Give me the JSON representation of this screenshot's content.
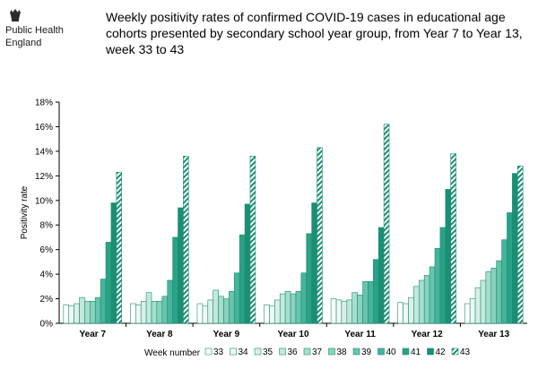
{
  "header": {
    "org_line1": "Public Health",
    "org_line2": "England",
    "title": "Weekly positivity rates of confirmed COVID-19 cases in educational age cohorts presented by secondary school year group, from Year 7 to Year 13, week 33 to 43"
  },
  "chart_data": {
    "type": "bar",
    "title": "Weekly positivity rates of confirmed COVID-19 cases in educational age cohorts presented by secondary school year group, from Year 7 to Year 13, week 33 to 43",
    "xlabel": "",
    "ylabel": "Positivity rate",
    "ylim": [
      0,
      18
    ],
    "y_unit": "%",
    "y_ticks": [
      0,
      2,
      4,
      6,
      8,
      10,
      12,
      14,
      16,
      18
    ],
    "y_tick_labels": [
      "0%",
      "2%",
      "4%",
      "6%",
      "8%",
      "10%",
      "12%",
      "14%",
      "16%",
      "18%"
    ],
    "grid": false,
    "legend": {
      "title": "Week number",
      "placement": "bottom"
    },
    "categories": [
      "Year 7",
      "Year 8",
      "Year 9",
      "Year 10",
      "Year 11",
      "Year 12",
      "Year 13"
    ],
    "series": [
      {
        "name": "33",
        "color": "#ffffff",
        "values": [
          1.5,
          1.6,
          1.6,
          1.5,
          2.0,
          1.7,
          1.6
        ]
      },
      {
        "name": "34",
        "color": "#f0f8f5",
        "values": [
          1.4,
          1.5,
          1.4,
          1.4,
          1.9,
          1.6,
          2.0
        ]
      },
      {
        "name": "35",
        "color": "#daf0e9",
        "values": [
          1.6,
          1.8,
          1.9,
          1.9,
          1.8,
          2.1,
          2.9
        ]
      },
      {
        "name": "36",
        "color": "#c3e8dc",
        "values": [
          2.1,
          2.5,
          2.7,
          2.4,
          1.9,
          3.0,
          3.5
        ]
      },
      {
        "name": "37",
        "color": "#a8dece",
        "values": [
          1.8,
          1.8,
          2.2,
          2.6,
          2.5,
          3.5,
          4.2
        ]
      },
      {
        "name": "38",
        "color": "#8ad2bf",
        "values": [
          1.8,
          1.8,
          2.0,
          2.4,
          2.3,
          3.9,
          4.5
        ]
      },
      {
        "name": "39",
        "color": "#69c4ad",
        "values": [
          2.1,
          2.2,
          2.6,
          2.6,
          3.4,
          4.6,
          5.1
        ]
      },
      {
        "name": "40",
        "color": "#45b49a",
        "values": [
          3.6,
          3.5,
          4.1,
          4.1,
          3.4,
          6.1,
          6.8
        ]
      },
      {
        "name": "41",
        "color": "#2aa285",
        "values": [
          6.6,
          7.0,
          7.2,
          7.3,
          5.2,
          7.8,
          9.0
        ]
      },
      {
        "name": "42",
        "color": "#1b8e74",
        "values": [
          9.8,
          9.4,
          9.7,
          9.8,
          7.8,
          10.9,
          12.2
        ]
      },
      {
        "name": "43",
        "color": "#1b8e74",
        "pattern": "hatched",
        "values": [
          12.3,
          13.6,
          13.6,
          14.3,
          16.2,
          13.8,
          12.8
        ]
      }
    ]
  }
}
